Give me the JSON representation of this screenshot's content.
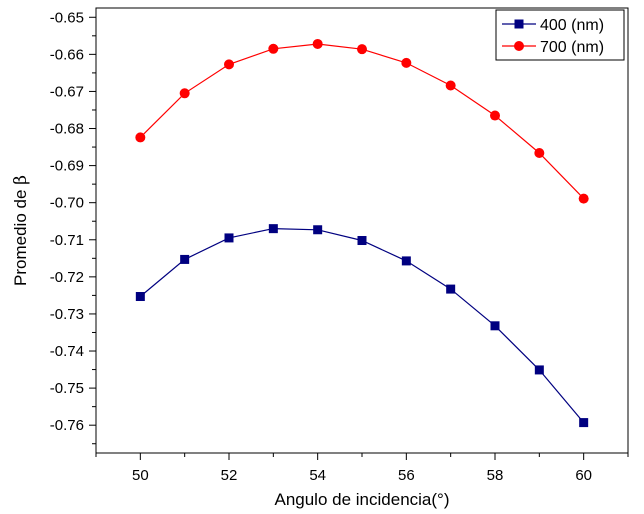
{
  "chart_data": {
    "type": "line",
    "xlabel": "Angulo de incidencia(°)",
    "ylabel_prefix": "Promedio de ",
    "ylabel_symbol": "β",
    "xlim": [
      49,
      61
    ],
    "ylim": [
      -0.7675,
      -0.6475
    ],
    "x_ticks": [
      50,
      52,
      54,
      56,
      58,
      60
    ],
    "x_tick_labels": [
      "50",
      "52",
      "54",
      "56",
      "58",
      "60"
    ],
    "y_ticks": [
      -0.65,
      -0.66,
      -0.67,
      -0.68,
      -0.69,
      -0.7,
      -0.71,
      -0.72,
      -0.73,
      -0.74,
      -0.75,
      -0.76
    ],
    "y_tick_labels": [
      "-0.65",
      "-0.66",
      "-0.67",
      "-0.68",
      "-0.69",
      "-0.70",
      "-0.71",
      "-0.72",
      "-0.73",
      "-0.74",
      "-0.75",
      "-0.76"
    ],
    "grid": false,
    "legend_position": "top-right",
    "x": [
      50,
      51,
      52,
      53,
      54,
      55,
      56,
      57,
      58,
      59,
      60
    ],
    "series": [
      {
        "name": "400 (nm)",
        "color": "#000080",
        "marker": "square",
        "values": [
          -0.7253,
          -0.7153,
          -0.7095,
          -0.707,
          -0.7073,
          -0.7102,
          -0.7157,
          -0.7233,
          -0.7332,
          -0.7451,
          -0.7593
        ]
      },
      {
        "name": "700 (nm)",
        "color": "#ff0000",
        "marker": "circle",
        "values": [
          -0.6824,
          -0.6705,
          -0.6627,
          -0.6585,
          -0.6572,
          -0.6586,
          -0.6623,
          -0.6684,
          -0.6765,
          -0.6866,
          -0.6989
        ]
      }
    ]
  }
}
